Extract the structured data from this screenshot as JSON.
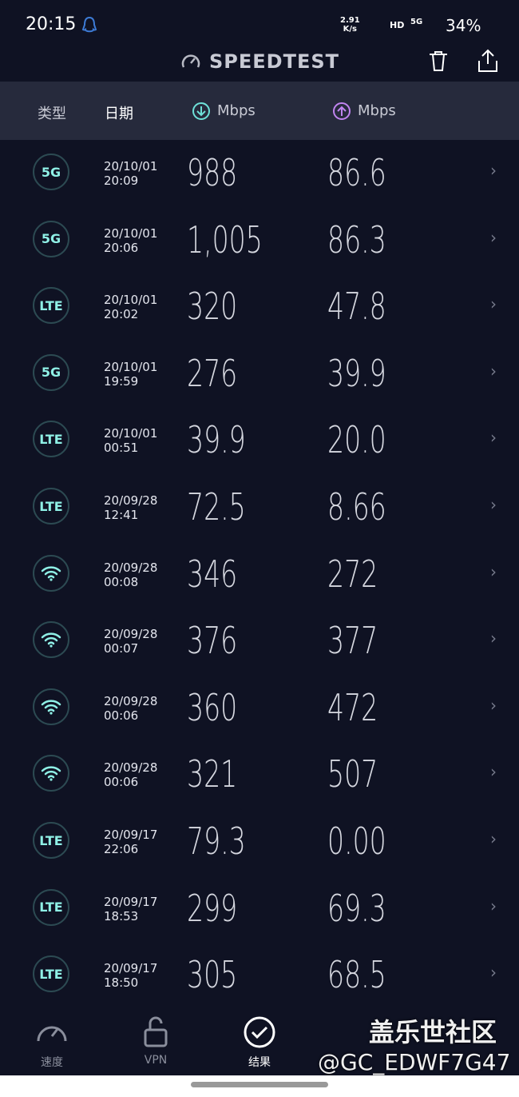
{
  "status_bar": {
    "time": "20:15",
    "speed": "2.91",
    "speed_unit": "K/s",
    "hd": "HD",
    "network": "5G",
    "battery": "34%"
  },
  "header": {
    "title": "SPEEDTEST"
  },
  "columns": {
    "type": "类型",
    "date": "日期",
    "download": "Mbps",
    "upload": "Mbps"
  },
  "rows": [
    {
      "badge": "5G",
      "date": "20/10/01",
      "time": "20:09",
      "download": "988",
      "upload": "86.6"
    },
    {
      "badge": "5G",
      "date": "20/10/01",
      "time": "20:06",
      "download": "1,005",
      "upload": "86.3"
    },
    {
      "badge": "LTE",
      "date": "20/10/01",
      "time": "20:02",
      "download": "320",
      "upload": "47.8"
    },
    {
      "badge": "5G",
      "date": "20/10/01",
      "time": "19:59",
      "download": "276",
      "upload": "39.9"
    },
    {
      "badge": "LTE",
      "date": "20/10/01",
      "time": "00:51",
      "download": "39.9",
      "upload": "20.0"
    },
    {
      "badge": "LTE",
      "date": "20/09/28",
      "time": "12:41",
      "download": "72.5",
      "upload": "8.66"
    },
    {
      "icon": "wifi",
      "date": "20/09/28",
      "time": "00:08",
      "download": "346",
      "upload": "272"
    },
    {
      "icon": "wifi",
      "date": "20/09/28",
      "time": "00:07",
      "download": "376",
      "upload": "377"
    },
    {
      "icon": "wifi",
      "date": "20/09/28",
      "time": "00:06",
      "download": "360",
      "upload": "472"
    },
    {
      "icon": "wifi",
      "date": "20/09/28",
      "time": "00:06",
      "download": "321",
      "upload": "507"
    },
    {
      "badge": "LTE",
      "date": "20/09/17",
      "time": "22:06",
      "download": "79.3",
      "upload": "0.00"
    },
    {
      "badge": "LTE",
      "date": "20/09/17",
      "time": "18:53",
      "download": "299",
      "upload": "69.3"
    },
    {
      "badge": "LTE",
      "date": "20/09/17",
      "time": "18:50",
      "download": "305",
      "upload": "68.5"
    }
  ],
  "nav": [
    "速度",
    "VPN",
    "结果"
  ],
  "watermark": {
    "brand": "盖乐世社区",
    "user": "@GC_EDWF7G47"
  }
}
